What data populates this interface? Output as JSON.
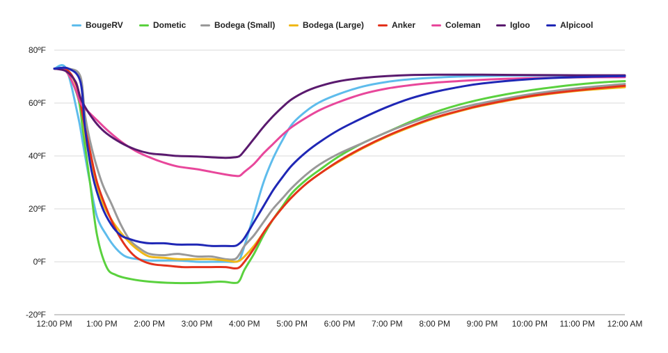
{
  "chart_data": {
    "type": "line",
    "title": "",
    "xlabel": "",
    "ylabel": "",
    "x_ticks": [
      "12:00 PM",
      "1:00 PM",
      "2:00 PM",
      "3:00 PM",
      "4:00 PM",
      "5:00 PM",
      "6:00 PM",
      "7:00 PM",
      "8:00 PM",
      "9:00 PM",
      "10:00 PM",
      "11:00 PM",
      "12:00 AM"
    ],
    "x_unit": "hours after 12:00 PM",
    "xlim": [
      0,
      12
    ],
    "y_ticks": [
      "80ºF",
      "60ºF",
      "40ºF",
      "20ºF",
      "0ºF",
      "-20ºF"
    ],
    "y_tick_values": [
      80,
      60,
      40,
      20,
      0,
      -20
    ],
    "ylim": [
      -20,
      80
    ],
    "grid": true,
    "legend_position": "top",
    "series": [
      {
        "name": "BougeRV",
        "color": "#5ebcec",
        "x": [
          0,
          0.25,
          0.5,
          0.6,
          0.75,
          0.9,
          1.1,
          1.3,
          1.5,
          1.75,
          2.0,
          2.3,
          2.6,
          3.0,
          3.3,
          3.6,
          3.8,
          3.9,
          4.0,
          4.2,
          4.4,
          4.6,
          4.8,
          5.0,
          5.3,
          5.6,
          6.0,
          6.5,
          7.0,
          7.5,
          8.0,
          8.5,
          9.0,
          10.0,
          11.0,
          12.0
        ],
        "values": [
          73,
          73,
          55,
          45,
          30,
          17,
          10,
          5,
          2,
          1,
          0.5,
          0.5,
          0.5,
          0,
          0,
          0,
          0,
          1,
          6,
          18,
          30,
          39,
          46,
          52,
          57,
          60.5,
          63.5,
          66.3,
          68,
          69,
          69.6,
          70,
          70.2,
          70.4,
          70.4,
          70.4
        ]
      },
      {
        "name": "Dometic",
        "color": "#5ad13e",
        "x": [
          0,
          0.25,
          0.5,
          0.6,
          0.75,
          0.9,
          1.1,
          1.3,
          1.6,
          2.0,
          2.5,
          3.0,
          3.5,
          3.8,
          3.9,
          4.0,
          4.2,
          4.4,
          4.6,
          4.8,
          5.0,
          5.3,
          5.6,
          6.0,
          6.5,
          7.0,
          7.5,
          8.0,
          8.5,
          9.0,
          9.5,
          10.0,
          10.5,
          11.0,
          11.5,
          12.0
        ],
        "values": [
          73,
          72,
          62,
          50,
          30,
          10,
          -2,
          -5,
          -6.5,
          -7.5,
          -8,
          -8,
          -7.5,
          -8,
          -7,
          -3,
          3,
          10,
          16,
          21,
          26,
          31,
          35,
          40,
          45,
          49,
          53,
          56.5,
          59.3,
          61.5,
          63.3,
          64.8,
          66,
          67,
          67.8,
          68.3
        ]
      },
      {
        "name": "Bodega (Small)",
        "color": "#999999",
        "x": [
          0,
          0.3,
          0.55,
          0.65,
          0.8,
          1.0,
          1.2,
          1.4,
          1.6,
          1.8,
          2.0,
          2.3,
          2.6,
          3.0,
          3.3,
          3.6,
          3.8,
          3.9,
          4.0,
          4.2,
          4.4,
          4.6,
          4.8,
          5.0,
          5.3,
          5.6,
          6.0,
          6.5,
          7.0,
          7.5,
          8.0,
          8.5,
          9.0,
          10.0,
          11.0,
          12.0
        ],
        "values": [
          73,
          73,
          70,
          55,
          42,
          30,
          22,
          14,
          8,
          5,
          3,
          2.5,
          3,
          2,
          2,
          1,
          1,
          3,
          6,
          10,
          15,
          20,
          24,
          28,
          33,
          37,
          41,
          45,
          49,
          52.5,
          55.5,
          58,
          60,
          63.3,
          65.6,
          67.2
        ]
      },
      {
        "name": "Bodega (Large)",
        "color": "#f0b818",
        "x": [
          0,
          0.3,
          0.55,
          0.65,
          0.8,
          1.0,
          1.2,
          1.4,
          1.6,
          1.8,
          2.0,
          2.3,
          2.6,
          3.0,
          3.3,
          3.6,
          3.8,
          3.9,
          4.0,
          4.2,
          4.4,
          4.6,
          4.8,
          5.0,
          5.3,
          5.6,
          6.0,
          6.5,
          7.0,
          7.5,
          8.0,
          8.5,
          9.0,
          10.0,
          11.0,
          12.0
        ],
        "values": [
          73,
          72,
          62,
          48,
          35,
          23,
          16,
          11,
          7,
          4,
          2,
          1.5,
          1,
          1,
          1,
          0.5,
          0,
          0.5,
          2,
          6,
          11,
          16,
          20.5,
          24.5,
          29.5,
          33.5,
          38,
          43,
          47.3,
          51,
          54.2,
          56.8,
          59,
          62.4,
          64.6,
          66
        ]
      },
      {
        "name": "Anker",
        "color": "#e3321c",
        "x": [
          0,
          0.3,
          0.5,
          0.6,
          0.75,
          0.9,
          1.1,
          1.3,
          1.5,
          1.7,
          1.9,
          2.1,
          2.4,
          2.7,
          3.0,
          3.3,
          3.6,
          3.8,
          3.9,
          4.0,
          4.2,
          4.4,
          4.6,
          4.8,
          5.0,
          5.3,
          5.6,
          6.0,
          6.5,
          7.0,
          7.5,
          8.0,
          8.5,
          9.0,
          10.0,
          11.0,
          12.0
        ],
        "values": [
          73,
          72,
          65,
          55,
          42,
          30,
          20,
          12,
          6,
          2,
          0,
          -1,
          -1.5,
          -2,
          -2,
          -2,
          -2,
          -2.5,
          -2,
          0,
          5,
          11,
          16,
          20.5,
          24.5,
          29.5,
          33.5,
          38.3,
          43.3,
          47.6,
          51.3,
          54.5,
          57,
          59.2,
          62.6,
          64.8,
          66.5
        ]
      },
      {
        "name": "Coleman",
        "color": "#e8479b",
        "x": [
          0,
          0.25,
          0.45,
          0.55,
          0.7,
          0.9,
          1.1,
          1.4,
          1.7,
          2.0,
          2.3,
          2.6,
          3.0,
          3.3,
          3.6,
          3.8,
          3.9,
          4.0,
          4.2,
          4.4,
          4.6,
          4.8,
          5.0,
          5.3,
          5.6,
          6.0,
          6.5,
          7.0,
          7.5,
          8.0,
          8.5,
          9.0,
          10.0,
          11.0,
          12.0
        ],
        "values": [
          73,
          72,
          65,
          60,
          57,
          53.5,
          50,
          45.5,
          42,
          39.5,
          37.5,
          36,
          35,
          34,
          33,
          32.5,
          32.5,
          34,
          37,
          41,
          44.5,
          48,
          51,
          54.5,
          57.5,
          60.5,
          63.5,
          65.5,
          66.8,
          67.7,
          68.3,
          68.8,
          69.4,
          69.7,
          69.8
        ]
      },
      {
        "name": "Igloo",
        "color": "#5a1a6e",
        "x": [
          0,
          0.25,
          0.45,
          0.55,
          0.7,
          0.9,
          1.1,
          1.4,
          1.7,
          2.0,
          2.3,
          2.6,
          3.0,
          3.3,
          3.6,
          3.8,
          3.9,
          4.0,
          4.2,
          4.4,
          4.6,
          4.8,
          5.0,
          5.3,
          5.6,
          6.0,
          6.5,
          7.0,
          7.5,
          8.0,
          8.5,
          9.0,
          10.0,
          11.0,
          12.0
        ],
        "values": [
          73,
          72,
          68,
          62,
          57,
          52,
          48.5,
          45,
          42.5,
          41,
          40.5,
          40,
          39.8,
          39.5,
          39.3,
          39.5,
          40,
          42,
          46.5,
          51,
          55,
          58.5,
          61.5,
          64.5,
          66.5,
          68.3,
          69.5,
          70.2,
          70.6,
          70.7,
          70.7,
          70.7,
          70.6,
          70.5,
          70.5
        ]
      },
      {
        "name": "Alpicool",
        "color": "#1f27b5",
        "x": [
          0,
          0.3,
          0.55,
          0.65,
          0.8,
          1.0,
          1.2,
          1.4,
          1.6,
          1.8,
          2.0,
          2.3,
          2.6,
          3.0,
          3.3,
          3.6,
          3.8,
          3.9,
          4.0,
          4.2,
          4.4,
          4.6,
          4.8,
          5.0,
          5.3,
          5.6,
          6.0,
          6.5,
          7.0,
          7.5,
          8.0,
          8.5,
          9.0,
          10.0,
          11.0,
          12.0
        ],
        "values": [
          73,
          73,
          68,
          50,
          33,
          21,
          14,
          10,
          8.5,
          7.5,
          7,
          7,
          6.5,
          6.5,
          6,
          6,
          6,
          7,
          9,
          15,
          21,
          27,
          32,
          36.5,
          41.5,
          45.5,
          50,
          54.5,
          58.5,
          61.8,
          64.2,
          66,
          67.4,
          69,
          69.8,
          70.2
        ]
      }
    ]
  }
}
